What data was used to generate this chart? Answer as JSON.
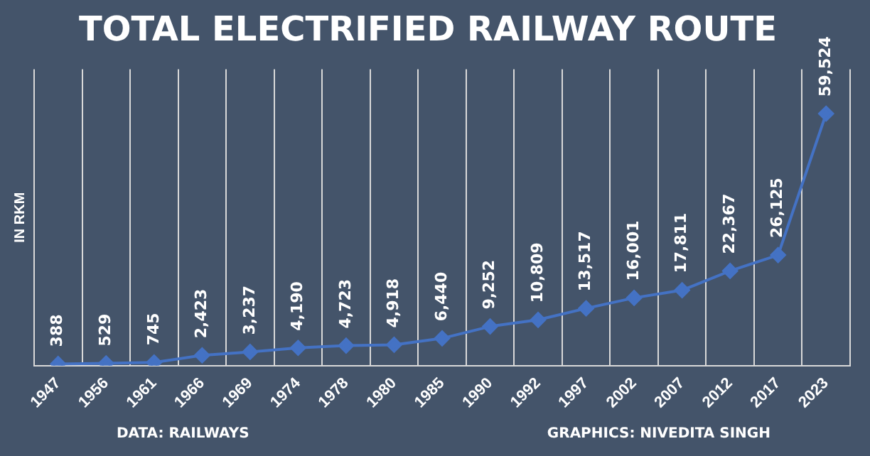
{
  "chart_data": {
    "type": "line",
    "title": "TOTAL ELECTRIFIED RAILWAY ROUTE",
    "ylabel": "IN RKM",
    "categories": [
      "1947",
      "1956",
      "1961",
      "1966",
      "1969",
      "1974",
      "1978",
      "1980",
      "1985",
      "1990",
      "1992",
      "1997",
      "2002",
      "2007",
      "2012",
      "2017",
      "2023"
    ],
    "series": [
      {
        "color": "#4472c4",
        "values": [
          388,
          529,
          745,
          2423,
          3237,
          4190,
          4723,
          4918,
          6440,
          9252,
          10809,
          13517,
          16001,
          17811,
          22367,
          26125,
          59524
        ],
        "value_labels": [
          "388",
          "529",
          "745",
          "2,423",
          "3,237",
          "4,190",
          "4,723",
          "4,918",
          "6,440",
          "9,252",
          "10,809",
          "13,517",
          "16,001",
          "17,811",
          "22,367",
          "26,125",
          "59,524"
        ]
      }
    ],
    "ylim": [
      0,
      70000
    ],
    "grid": "x",
    "legend": false,
    "marker": "diamond",
    "line_style": "solid",
    "annotations": [
      "DATA: RAILWAYS",
      "GRAPHICS: NIVEDITA SINGH"
    ]
  }
}
